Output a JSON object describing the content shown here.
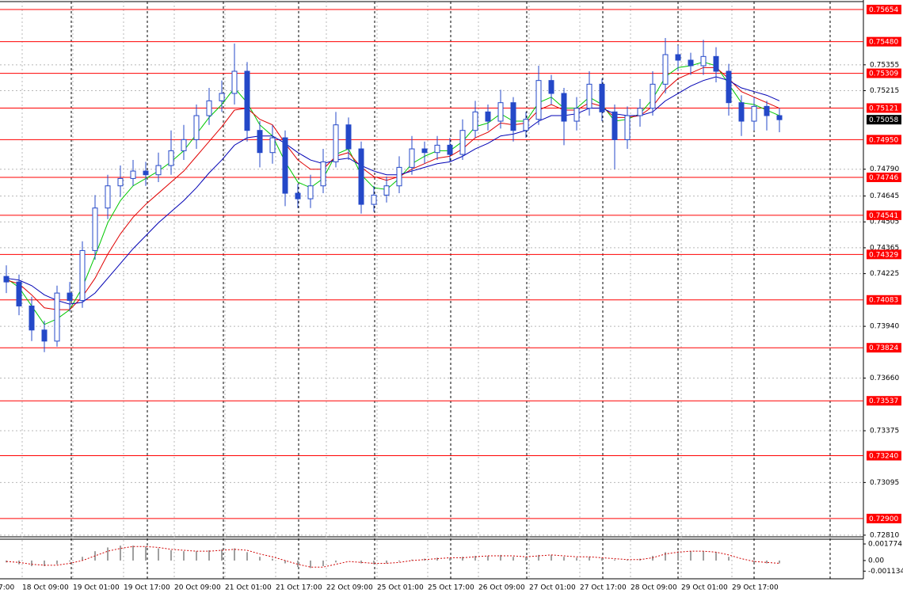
{
  "chart_data": {
    "type": "candlestick",
    "x_labels": [
      "7:00",
      "18 Oct 09:00",
      "19 Oct 01:00",
      "19 Oct 17:00",
      "20 Oct 09:00",
      "21 Oct 01:00",
      "21 Oct 17:00",
      "22 Oct 09:00",
      "25 Oct 01:00",
      "25 Oct 17:00",
      "26 Oct 09:00",
      "27 Oct 01:00",
      "27 Oct 17:00",
      "28 Oct 09:00",
      "29 Oct 01:00",
      "29 Oct 17:00"
    ],
    "color": "#2448c8",
    "open": [
      0.7421,
      0.7418,
      0.7405,
      0.7392,
      0.7386,
      0.7412,
      0.7408,
      0.7435,
      0.7458,
      0.747,
      0.7474,
      0.7478,
      0.7476,
      0.7481,
      0.7489,
      0.7495,
      0.7508,
      0.7516,
      0.752,
      0.7532,
      0.75,
      0.7488,
      0.7496,
      0.7466,
      0.7463,
      0.747,
      0.7483,
      0.7503,
      0.749,
      0.746,
      0.7465,
      0.747,
      0.748,
      0.749,
      0.7488,
      0.7492,
      0.7487,
      0.75,
      0.751,
      0.7505,
      0.7515,
      0.75,
      0.7506,
      0.7527,
      0.752,
      0.7505,
      0.7512,
      0.7525,
      0.751,
      0.7495,
      0.7508,
      0.7512,
      0.7525,
      0.7541,
      0.7538,
      0.7535,
      0.754,
      0.7532,
      0.7515,
      0.7505,
      0.7513,
      0.7508
    ],
    "high": [
      0.7427,
      0.7422,
      0.741,
      0.7397,
      0.7416,
      0.7418,
      0.744,
      0.7465,
      0.7476,
      0.7481,
      0.7484,
      0.7483,
      0.7488,
      0.75,
      0.7503,
      0.7514,
      0.7523,
      0.7527,
      0.7547,
      0.7537,
      0.7505,
      0.7503,
      0.75,
      0.7471,
      0.7476,
      0.749,
      0.751,
      0.7507,
      0.7494,
      0.747,
      0.7475,
      0.7486,
      0.7497,
      0.7494,
      0.7497,
      0.7496,
      0.7506,
      0.7516,
      0.7514,
      0.7522,
      0.7518,
      0.751,
      0.7535,
      0.753,
      0.7523,
      0.7518,
      0.7532,
      0.7528,
      0.7514,
      0.7513,
      0.7517,
      0.7532,
      0.755,
      0.7546,
      0.7542,
      0.7549,
      0.7545,
      0.7536,
      0.7519,
      0.7518,
      0.7516,
      0.7512
    ],
    "low": [
      0.7412,
      0.74,
      0.7386,
      0.738,
      0.7383,
      0.7402,
      0.7404,
      0.743,
      0.7452,
      0.7464,
      0.747,
      0.747,
      0.7472,
      0.7476,
      0.7484,
      0.749,
      0.7503,
      0.751,
      0.7514,
      0.7494,
      0.748,
      0.7482,
      0.7459,
      0.7458,
      0.7458,
      0.7466,
      0.748,
      0.7484,
      0.7455,
      0.7456,
      0.7461,
      0.7466,
      0.7476,
      0.7482,
      0.7484,
      0.7483,
      0.7484,
      0.7496,
      0.75,
      0.7501,
      0.7494,
      0.7496,
      0.7503,
      0.7514,
      0.7492,
      0.75,
      0.7508,
      0.7505,
      0.7479,
      0.749,
      0.7502,
      0.7508,
      0.752,
      0.7532,
      0.753,
      0.753,
      0.7526,
      0.7508,
      0.7497,
      0.75,
      0.75,
      0.7499
    ],
    "close": [
      0.7418,
      0.7405,
      0.7392,
      0.7386,
      0.7412,
      0.7408,
      0.7435,
      0.7458,
      0.747,
      0.7474,
      0.7478,
      0.7476,
      0.7481,
      0.7489,
      0.7495,
      0.7508,
      0.7516,
      0.752,
      0.7532,
      0.75,
      0.7488,
      0.7496,
      0.7466,
      0.7463,
      0.747,
      0.7483,
      0.7503,
      0.749,
      0.746,
      0.7465,
      0.747,
      0.748,
      0.749,
      0.7488,
      0.7492,
      0.7487,
      0.75,
      0.751,
      0.7505,
      0.7515,
      0.75,
      0.7506,
      0.7527,
      0.752,
      0.7505,
      0.7512,
      0.7525,
      0.751,
      0.7495,
      0.7508,
      0.7512,
      0.7525,
      0.7541,
      0.7538,
      0.7535,
      0.754,
      0.7532,
      0.7515,
      0.7505,
      0.7513,
      0.7508,
      0.75058
    ],
    "moving_averages": [
      {
        "color": "#00c800",
        "values": [
          0.742,
          0.7415,
          0.7405,
          0.7395,
          0.7398,
          0.7403,
          0.7415,
          0.7432,
          0.745,
          0.7462,
          0.747,
          0.7474,
          0.7478,
          0.7483,
          0.7489,
          0.7498,
          0.7507,
          0.7514,
          0.7523,
          0.7515,
          0.7503,
          0.7497,
          0.7483,
          0.7472,
          0.7469,
          0.7474,
          0.7487,
          0.749,
          0.7476,
          0.7469,
          0.7468,
          0.7474,
          0.7482,
          0.7486,
          0.7489,
          0.7489,
          0.7494,
          0.7502,
          0.7504,
          0.7509,
          0.7505,
          0.7505,
          0.7515,
          0.7518,
          0.7512,
          0.7512,
          0.7518,
          0.7514,
          0.7505,
          0.7506,
          0.7509,
          0.7517,
          0.7529,
          0.7534,
          0.7535,
          0.7537,
          0.7535,
          0.7525,
          0.7515,
          0.7514,
          0.7511,
          0.7508
        ]
      },
      {
        "color": "#e00000",
        "values": [
          0.7419,
          0.7417,
          0.7411,
          0.7404,
          0.7403,
          0.7403,
          0.741,
          0.742,
          0.7433,
          0.7444,
          0.7453,
          0.746,
          0.7466,
          0.7472,
          0.7478,
          0.7486,
          0.7494,
          0.7502,
          0.7511,
          0.7512,
          0.7506,
          0.7503,
          0.7493,
          0.7484,
          0.7479,
          0.7479,
          0.7486,
          0.7488,
          0.748,
          0.7475,
          0.7473,
          0.7475,
          0.7479,
          0.7482,
          0.7485,
          0.7486,
          0.749,
          0.7496,
          0.7499,
          0.7504,
          0.7503,
          0.7504,
          0.7511,
          0.7514,
          0.7511,
          0.7511,
          0.7515,
          0.7513,
          0.7507,
          0.7507,
          0.7508,
          0.7513,
          0.7522,
          0.7528,
          0.7531,
          0.7534,
          0.7534,
          0.7528,
          0.7521,
          0.7518,
          0.7515,
          0.7512
        ]
      },
      {
        "color": "#0000b4",
        "values": [
          0.742,
          0.7419,
          0.7416,
          0.7411,
          0.7408,
          0.7406,
          0.7407,
          0.7412,
          0.742,
          0.7428,
          0.7436,
          0.7443,
          0.745,
          0.7456,
          0.7462,
          0.7469,
          0.7477,
          0.7484,
          0.7492,
          0.7496,
          0.7497,
          0.7497,
          0.7493,
          0.7488,
          0.7484,
          0.7482,
          0.7484,
          0.7485,
          0.7481,
          0.7478,
          0.7476,
          0.7476,
          0.7478,
          0.748,
          0.7482,
          0.7483,
          0.7486,
          0.749,
          0.7493,
          0.7497,
          0.7498,
          0.75,
          0.7505,
          0.7508,
          0.7508,
          0.7509,
          0.7512,
          0.7512,
          0.7509,
          0.7508,
          0.7508,
          0.751,
          0.7516,
          0.752,
          0.7524,
          0.7527,
          0.7529,
          0.7527,
          0.7523,
          0.7521,
          0.7519,
          0.7516
        ]
      }
    ],
    "ylim": [
      0.72801,
      0.75697
    ],
    "yticks": [
      {
        "value": 0.75355,
        "label": "0.75355"
      },
      {
        "value": 0.75215,
        "label": "0.75215"
      },
      {
        "value": 0.7479,
        "label": "0.74790"
      },
      {
        "value": 0.74645,
        "label": "0.74645"
      },
      {
        "value": 0.74505,
        "label": "0.74505"
      },
      {
        "value": 0.74365,
        "label": "0.74365"
      },
      {
        "value": 0.74225,
        "label": "0.74225"
      },
      {
        "value": 0.7394,
        "label": "0.73940"
      },
      {
        "value": 0.7366,
        "label": "0.73660"
      },
      {
        "value": 0.73375,
        "label": "0.73375"
      },
      {
        "value": 0.73095,
        "label": "0.73095"
      },
      {
        "value": 0.7281,
        "label": "0.72810"
      }
    ],
    "grid": true,
    "levels": {
      "color": "#ff0000",
      "values": [
        {
          "value": 0.75654,
          "label": "0.75654"
        },
        {
          "value": 0.7548,
          "label": "0.75480"
        },
        {
          "value": 0.75309,
          "label": "0.75309"
        },
        {
          "value": 0.75121,
          "label": "0.75121"
        },
        {
          "value": 0.7495,
          "label": "0.74950"
        },
        {
          "value": 0.74746,
          "label": "0.74746"
        },
        {
          "value": 0.74541,
          "label": "0.74541"
        },
        {
          "value": 0.74329,
          "label": "0.74329"
        },
        {
          "value": 0.74083,
          "label": "0.74083"
        },
        {
          "value": 0.73824,
          "label": "0.73824"
        },
        {
          "value": 0.73537,
          "label": "0.73537"
        },
        {
          "value": 0.7324,
          "label": "0.73240"
        },
        {
          "value": 0.729,
          "label": "0.72900"
        }
      ]
    },
    "last_price": {
      "value": 0.75058,
      "label": "0.75058"
    },
    "oscillator": {
      "histogram_color": "#a0a0a0",
      "signal_color": "#d00000",
      "ylim": [
        -0.0017,
        0.0022
      ],
      "yticks": [
        {
          "value": 0.001774,
          "label": "0.001774"
        },
        {
          "value": 0,
          "label": "0.00"
        },
        {
          "value": -0.001134,
          "label": "-0.001134"
        }
      ],
      "histogram": [
        -0.0002,
        -0.0004,
        -0.0006,
        -0.0006,
        -0.0004,
        -0.0001,
        0.0004,
        0.001,
        0.0014,
        0.0016,
        0.0016,
        0.0015,
        0.0013,
        0.0011,
        0.001,
        0.001,
        0.0011,
        0.0012,
        0.0013,
        0.0009,
        0.0004,
        0.0002,
        -0.0003,
        -0.0007,
        -0.0008,
        -0.0006,
        -0.0002,
        0,
        -0.0003,
        -0.0004,
        -0.0003,
        -0.0001,
        0.0001,
        0.0002,
        0.0003,
        0.0003,
        0.0004,
        0.0005,
        0.0005,
        0.0006,
        0.0004,
        0.0004,
        0.0006,
        0.0006,
        0.0004,
        0.0003,
        0.0004,
        0.0003,
        0.0001,
        0.0001,
        0.0002,
        0.0005,
        0.0009,
        0.001,
        0.001,
        0.001,
        0.0009,
        0.0004,
        0,
        -0.0002,
        -0.0003,
        -0.0003
      ],
      "signal": [
        -0.0001,
        -0.0002,
        -0.0004,
        -0.0005,
        -0.0005,
        -0.0003,
        0,
        0.0005,
        0.001,
        0.0013,
        0.0015,
        0.0015,
        0.0014,
        0.0012,
        0.0011,
        0.001,
        0.001,
        0.0011,
        0.0012,
        0.0011,
        0.0007,
        0.0004,
        0,
        -0.0004,
        -0.0007,
        -0.0007,
        -0.0004,
        -0.0001,
        -0.0002,
        -0.0003,
        -0.0003,
        -0.0002,
        0,
        0.0001,
        0.0002,
        0.0003,
        0.0003,
        0.0004,
        0.0005,
        0.0005,
        0.0005,
        0.0004,
        0.0005,
        0.0006,
        0.0005,
        0.0004,
        0.0004,
        0.0003,
        0.0002,
        0.0001,
        0.0001,
        0.0003,
        0.0007,
        0.0009,
        0.001,
        0.001,
        0.0009,
        0.0006,
        0.0002,
        -0.0001,
        -0.0002,
        -0.0003
      ]
    }
  }
}
